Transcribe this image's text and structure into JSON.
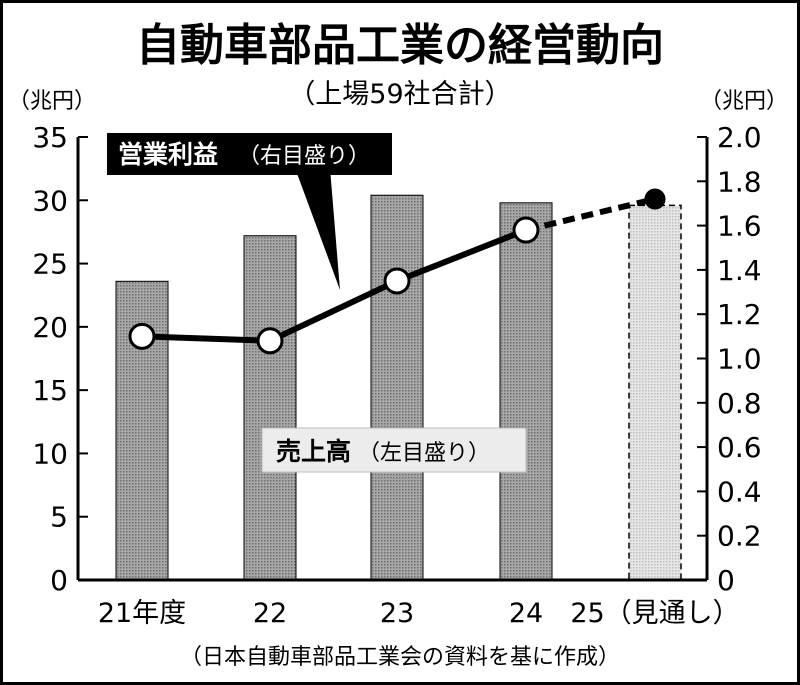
{
  "title": "自動車部品工業の経営動向",
  "subtitle": "（上場59社合計）",
  "source": "（日本自動車部品工業会の資料を基に作成）",
  "colors": {
    "bar": "#9a9a9a",
    "bar_forecast": "#d9d9d9",
    "line": "#000000",
    "marker_fill": "#ffffff",
    "background": "#ffffff"
  },
  "chart_data": {
    "type": "bar+line",
    "categories": [
      "21年度",
      "22",
      "23",
      "24",
      "25（見通し）"
    ],
    "left_axis": {
      "unit": "（兆円）",
      "ylim": [
        0,
        35
      ],
      "ticks": [
        "0",
        "5",
        "10",
        "15",
        "20",
        "25",
        "30",
        "35"
      ]
    },
    "right_axis": {
      "unit": "（兆円）",
      "ylim": [
        0,
        2.0
      ],
      "ticks": [
        "0",
        "0.2",
        "0.4",
        "0.6",
        "0.8",
        "1.0",
        "1.2",
        "1.4",
        "1.6",
        "1.8",
        "2.0"
      ]
    },
    "series": [
      {
        "name": "売上高",
        "axis_label": "（左目盛り）",
        "kind": "bar",
        "axis": "left",
        "values": [
          23.6,
          27.2,
          30.4,
          29.8,
          29.6
        ],
        "forecast_index": 4
      },
      {
        "name": "営業利益",
        "axis_label": "（右目盛り）",
        "kind": "line",
        "axis": "right",
        "values": [
          1.1,
          1.08,
          1.35,
          1.58,
          1.72
        ],
        "forecast_index": 4
      }
    ],
    "grid": false
  }
}
